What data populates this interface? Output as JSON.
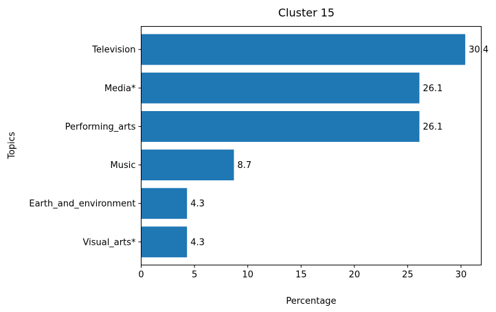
{
  "chart_data": {
    "type": "bar",
    "orientation": "horizontal",
    "title": "Cluster 15",
    "xlabel": "Percentage",
    "ylabel": "Topics",
    "xlim": [
      0,
      31.9
    ],
    "x_ticks": [
      0,
      5,
      10,
      15,
      20,
      25,
      30
    ],
    "categories": [
      "Television",
      "Media*",
      "Performing_arts",
      "Music",
      "Earth_and_environment",
      "Visual_arts*"
    ],
    "values": [
      30.4,
      26.1,
      26.1,
      8.7,
      4.3,
      4.3
    ],
    "value_labels": [
      "30.4",
      "26.1",
      "26.1",
      "8.7",
      "4.3",
      "4.3"
    ],
    "bar_color": "#1f77b4",
    "grid": false,
    "legend": "none"
  }
}
